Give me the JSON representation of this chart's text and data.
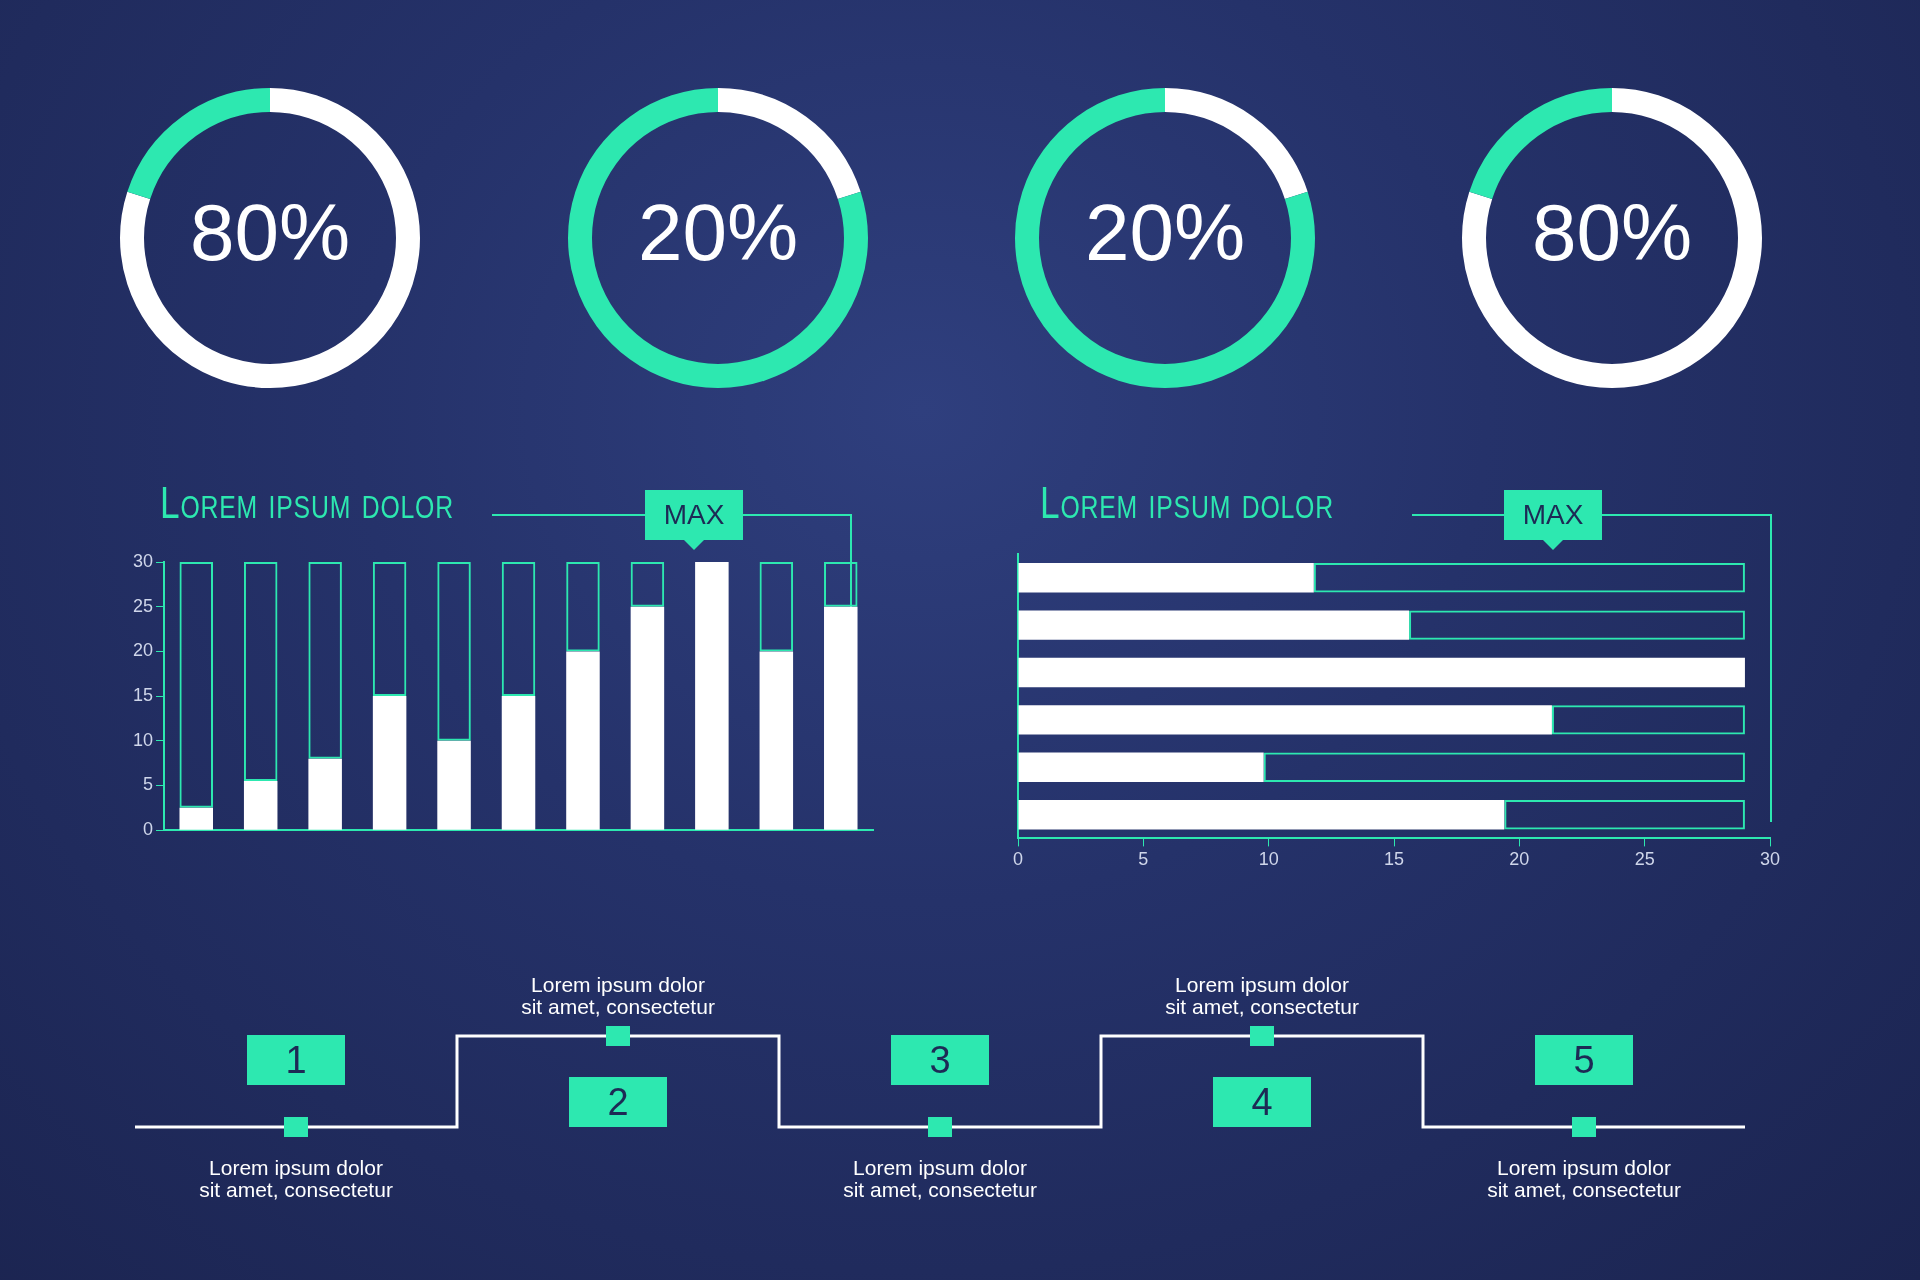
{
  "chart_data": [
    {
      "type": "donut",
      "categories": [
        null,
        null
      ],
      "values": [
        80,
        20
      ],
      "colors": [
        "#ffffff",
        "#2de8b0"
      ],
      "value_labels": [
        "80%",
        null
      ]
    },
    {
      "type": "donut",
      "categories": [
        null,
        null
      ],
      "values": [
        20,
        80
      ],
      "colors": [
        "#ffffff",
        "#2de8b0"
      ],
      "value_labels": [
        "20%",
        null
      ]
    },
    {
      "type": "donut",
      "categories": [
        null,
        null
      ],
      "values": [
        20,
        80
      ],
      "colors": [
        "#ffffff",
        "#2de8b0"
      ],
      "value_labels": [
        "20%",
        null
      ]
    },
    {
      "type": "donut",
      "categories": [
        null,
        null
      ],
      "values": [
        80,
        20
      ],
      "colors": [
        "#ffffff",
        "#2de8b0"
      ],
      "value_labels": [
        "80%",
        null
      ]
    },
    {
      "type": "bar",
      "title": "Lorem ipsum dolor",
      "annotations": [
        "MAX"
      ],
      "categories": [
        null,
        null,
        null,
        null,
        null,
        null,
        null,
        null,
        null,
        null,
        null
      ],
      "stacked": true,
      "series": [
        {
          "color": "#ffffff",
          "values": [
            2.5,
            5.5,
            8,
            15,
            10,
            15,
            20,
            25,
            30,
            20,
            25
          ]
        },
        {
          "color": "#2de8b0",
          "values": [
            27.5,
            24.5,
            22,
            15,
            20,
            15,
            10,
            5,
            0,
            10,
            5
          ]
        }
      ],
      "ylim": [
        0,
        30
      ],
      "yticks": [
        0,
        5,
        10,
        15,
        20,
        25,
        30
      ],
      "grid": false,
      "legend": false,
      "tick_labels": "y"
    },
    {
      "type": "bar",
      "title": "Lorem ipsum dolor",
      "annotations": [
        "MAX"
      ],
      "orientation": "horizontal",
      "categories": [
        null,
        null,
        null,
        null,
        null,
        null
      ],
      "stacked": true,
      "series": [
        {
          "color": "#ffffff",
          "values": [
            11.8,
            15.6,
            29,
            21.3,
            9.8,
            19.4
          ]
        },
        {
          "color": "#2de8b0",
          "values": [
            17.2,
            13.4,
            0,
            7.7,
            19.2,
            9.6
          ]
        }
      ],
      "xlim": [
        0,
        30
      ],
      "xticks": [
        0,
        5,
        10,
        15,
        20,
        25,
        30
      ],
      "grid": false,
      "legend": false,
      "tick_labels": "x"
    },
    {
      "type": "other",
      "annotations": [
        "1",
        "Lorem ipsum dolor\nsit amet, consectetur",
        "2",
        "Lorem ipsum dolor\nsit amet, consectetur",
        "3",
        "Lorem ipsum dolor\nsit amet, consectetur",
        "4",
        "Lorem ipsum dolor\nsit amet, consectetur",
        "5",
        "Lorem ipsum dolor\nsit amet, consectetur"
      ]
    }
  ]
}
